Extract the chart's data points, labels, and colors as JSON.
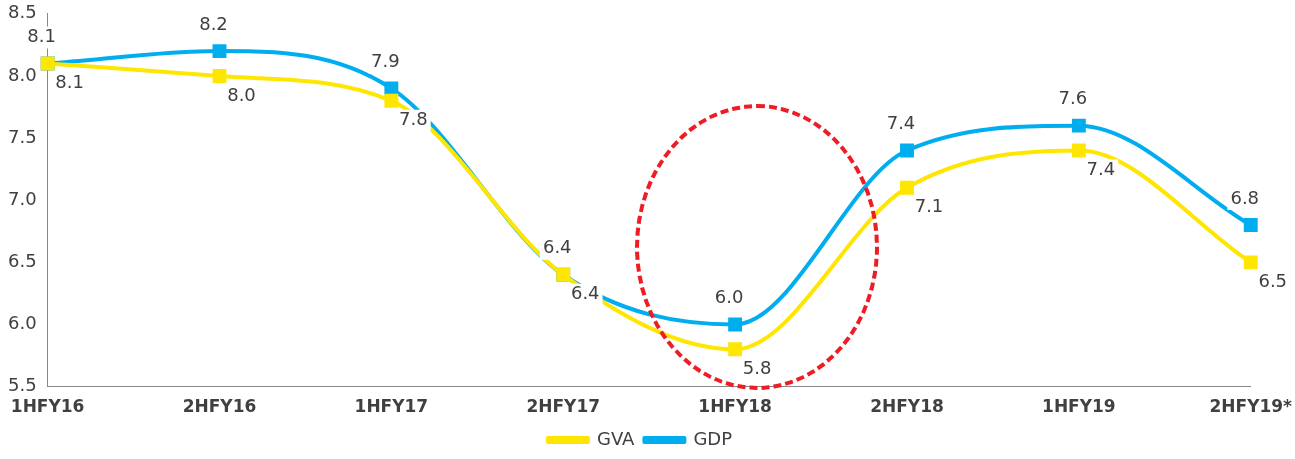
{
  "chart_data": {
    "type": "line",
    "categories": [
      "1HFY16",
      "2HFY16",
      "1HFY17",
      "2HFY17",
      "1HFY18",
      "2HFY18",
      "1HFY19",
      "2HFY19*"
    ],
    "series": [
      {
        "name": "GVA",
        "color": "#ffe600",
        "values": [
          8.1,
          8.0,
          7.8,
          6.4,
          5.8,
          7.1,
          7.4,
          6.5
        ],
        "value_labels": [
          "8.1",
          "8.0",
          "7.8",
          "6.4",
          "5.8",
          "7.1",
          "7.4",
          "6.5"
        ]
      },
      {
        "name": "GDP",
        "color": "#00aeef",
        "values": [
          8.1,
          8.2,
          7.9,
          6.4,
          6.0,
          7.4,
          7.6,
          6.8
        ],
        "value_labels": [
          "8.1",
          "8.2",
          "7.9",
          "6.4",
          "6.0",
          "7.4",
          "7.6",
          "6.8"
        ]
      }
    ],
    "ylim": [
      5.5,
      8.5
    ],
    "yticks": [
      5.5,
      {
        "value": 6,
        "label": "6.0"
      },
      6.5,
      {
        "value": 7,
        "label": "7.0"
      },
      7.5,
      {
        "value": 8,
        "label": "8.0"
      },
      8.5
    ],
    "grid": false,
    "legend": "bottom",
    "marker": "square",
    "line_style": "solid"
  }
}
